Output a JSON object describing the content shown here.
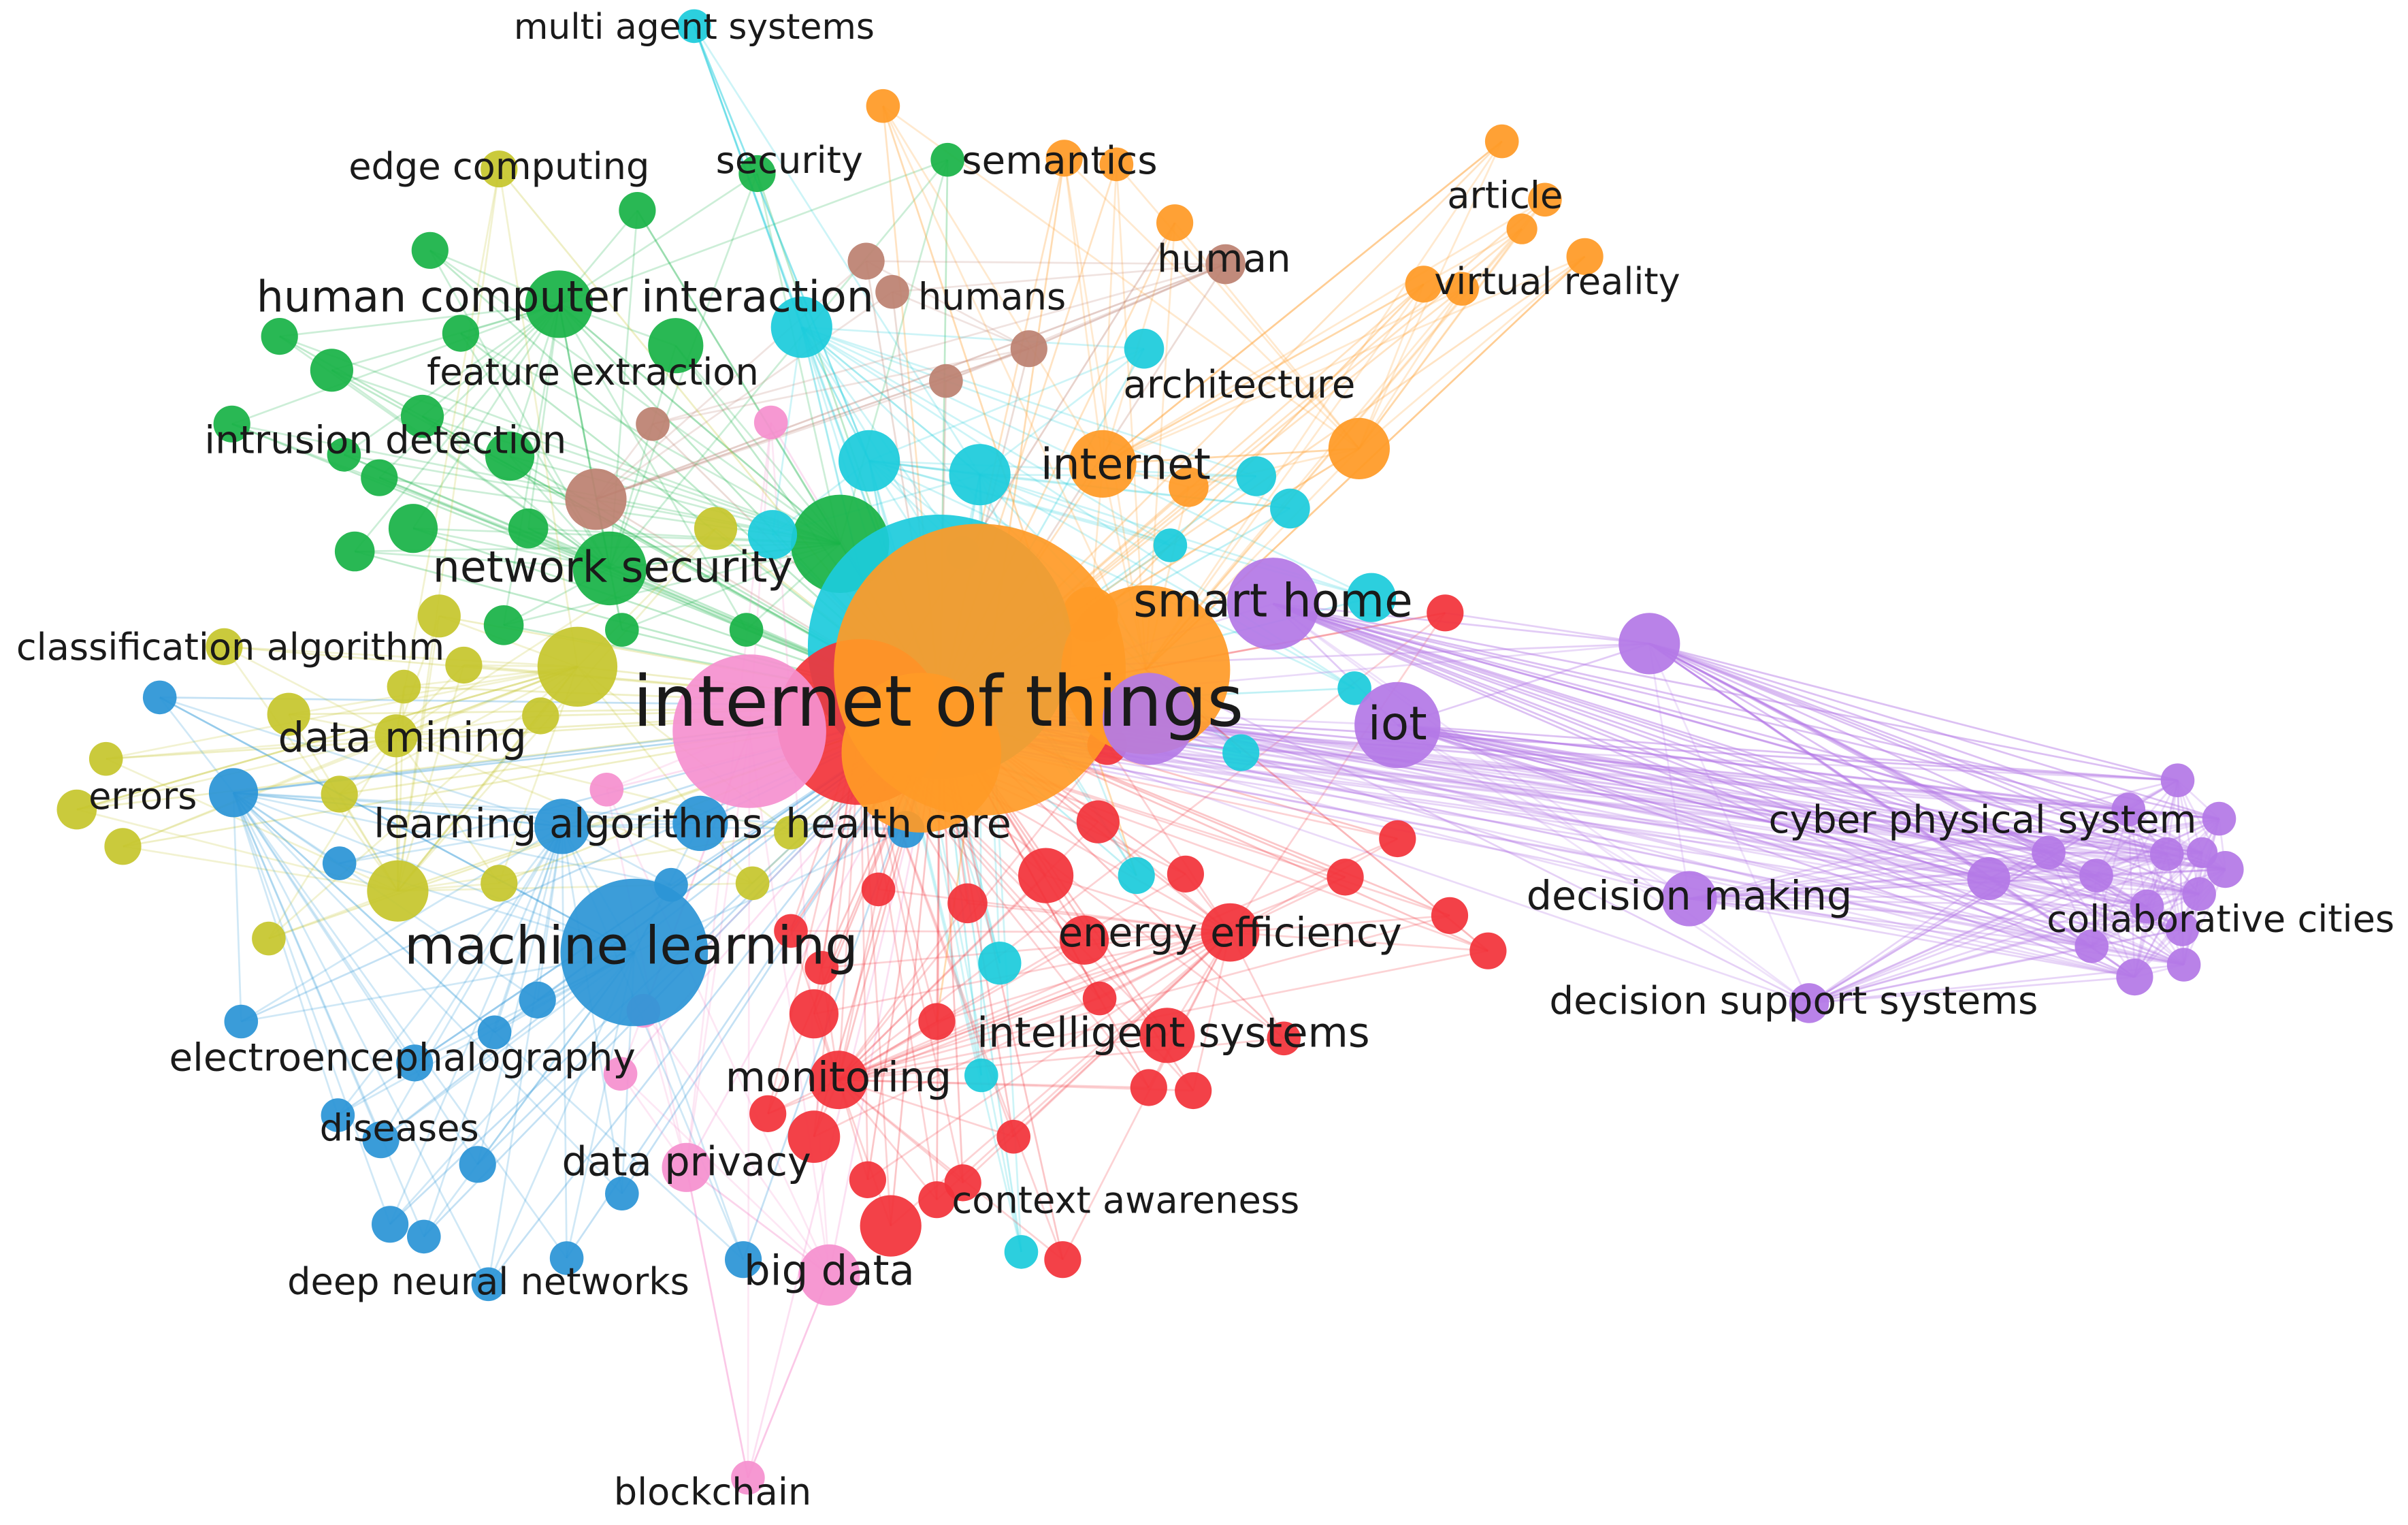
{
  "diagram": {
    "type": "keyword co-occurrence network",
    "clusters": {
      "red": "#f2333a",
      "green": "#19b347",
      "blue": "#2b95d6",
      "yellow": "#c6c62d",
      "purple": "#b479e6",
      "cyan": "#1ccbdc",
      "orange": "#ff9a26",
      "brown": "#bc8171",
      "pink": "#f590cf"
    },
    "labeled_nodes": [
      {
        "id": "internet-of-things",
        "label": "internet of things",
        "cluster": "orange"
      },
      {
        "id": "machine-learning",
        "label": "machine learning",
        "cluster": "blue"
      },
      {
        "id": "smart-home",
        "label": "smart home",
        "cluster": "purple"
      },
      {
        "id": "iot",
        "label": "iot",
        "cluster": "purple"
      },
      {
        "id": "internet",
        "label": "internet",
        "cluster": "orange"
      },
      {
        "id": "human-computer-interaction",
        "label": "human computer interaction",
        "cluster": "green"
      },
      {
        "id": "network-security",
        "label": "network security",
        "cluster": "green"
      },
      {
        "id": "intrusion-detection",
        "label": "intrusion detection",
        "cluster": "green"
      },
      {
        "id": "feature-extraction",
        "label": "feature extraction",
        "cluster": "green"
      },
      {
        "id": "edge-computing",
        "label": "edge computing",
        "cluster": "yellow"
      },
      {
        "id": "security",
        "label": "security",
        "cluster": "green"
      },
      {
        "id": "semantics",
        "label": "semantics",
        "cluster": "orange"
      },
      {
        "id": "multi-agent-systems",
        "label": "multi agent systems",
        "cluster": "cyan"
      },
      {
        "id": "article",
        "label": "article",
        "cluster": "orange"
      },
      {
        "id": "human",
        "label": "human",
        "cluster": "brown"
      },
      {
        "id": "humans",
        "label": "humans",
        "cluster": "brown"
      },
      {
        "id": "virtual-reality",
        "label": "virtual reality",
        "cluster": "orange"
      },
      {
        "id": "architecture",
        "label": "architecture",
        "cluster": "cyan"
      },
      {
        "id": "classification-algorithm",
        "label": "classification algorithm",
        "cluster": "yellow"
      },
      {
        "id": "data-mining",
        "label": "data mining",
        "cluster": "yellow"
      },
      {
        "id": "errors",
        "label": "errors",
        "cluster": "yellow"
      },
      {
        "id": "learning-algorithms",
        "label": "learning algorithms",
        "cluster": "blue"
      },
      {
        "id": "health-care",
        "label": "health care",
        "cluster": "red"
      },
      {
        "id": "energy-efficiency",
        "label": "energy efficiency",
        "cluster": "red"
      },
      {
        "id": "intelligent-systems",
        "label": "intelligent systems",
        "cluster": "red"
      },
      {
        "id": "monitoring",
        "label": "monitoring",
        "cluster": "red"
      },
      {
        "id": "context-awareness",
        "label": "context awareness",
        "cluster": "red"
      },
      {
        "id": "data-privacy",
        "label": "data privacy",
        "cluster": "pink"
      },
      {
        "id": "big-data",
        "label": "big data",
        "cluster": "pink"
      },
      {
        "id": "blockchain",
        "label": "blockchain",
        "cluster": "pink"
      },
      {
        "id": "electroencephalography",
        "label": "electroencephalography",
        "cluster": "blue"
      },
      {
        "id": "diseases",
        "label": "diseases",
        "cluster": "blue"
      },
      {
        "id": "deep-neural-networks",
        "label": "deep neural networks",
        "cluster": "blue"
      },
      {
        "id": "decision-making",
        "label": "decision making",
        "cluster": "purple"
      },
      {
        "id": "decision-support-systems",
        "label": "decision support systems",
        "cluster": "purple"
      },
      {
        "id": "cyber-physical-system",
        "label": "cyber physical system",
        "cluster": "purple"
      },
      {
        "id": "collaborative-cities",
        "label": "collaborative cities",
        "cluster": "purple"
      }
    ]
  }
}
